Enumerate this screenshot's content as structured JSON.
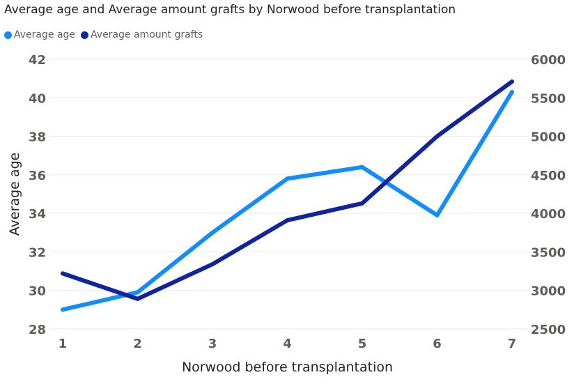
{
  "chart_data": {
    "type": "line",
    "title": "Average age and Average amount grafts by Norwood before transplantation",
    "xlabel": "Norwood before transplantation",
    "ylabel": "Average age",
    "y2label": "",
    "categories": [
      "1",
      "2",
      "3",
      "4",
      "5",
      "6",
      "7"
    ],
    "ylim": [
      28,
      42
    ],
    "yticks": [
      "28",
      "30",
      "32",
      "34",
      "36",
      "38",
      "40",
      "42"
    ],
    "y2lim": [
      2500,
      6000
    ],
    "y2ticks": [
      "2500",
      "3000",
      "3500",
      "4000",
      "4500",
      "5000",
      "5500",
      "6000"
    ],
    "grid": true,
    "legend_position": "top-left",
    "series": [
      {
        "name": "Average age",
        "axis": "left",
        "color": "#118DFF",
        "values": [
          29.0,
          29.9,
          33.0,
          35.8,
          36.4,
          33.9,
          40.3
        ]
      },
      {
        "name": "Average amount grafts",
        "axis": "right",
        "color": "#12239E",
        "values": [
          3220,
          2890,
          3340,
          3910,
          4130,
          5000,
          5710
        ]
      }
    ]
  }
}
